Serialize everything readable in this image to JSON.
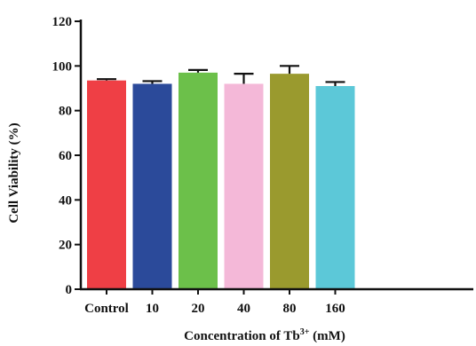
{
  "chart_data": {
    "type": "bar",
    "categories": [
      "Control",
      "10",
      "20",
      "40",
      "80",
      "160"
    ],
    "values": [
      93.5,
      92,
      97,
      92,
      96.5,
      91
    ],
    "errors": [
      0.6,
      1.2,
      1.2,
      4.5,
      3.5,
      1.8
    ],
    "colors": [
      "#ef3f45",
      "#2b4a9a",
      "#6cc04a",
      "#f4b8d8",
      "#9a9a2e",
      "#5cc8d8"
    ],
    "xlabel_main": "Concentration of Tb",
    "xlabel_sup": "3+",
    "xlabel_unit": " (mM)",
    "ylabel": "Cell  Viability (%)",
    "ylim": [
      0,
      120
    ],
    "yticks": [
      "0",
      "20",
      "40",
      "60",
      "80",
      "100",
      "120"
    ],
    "grid": false,
    "legend": "none"
  }
}
